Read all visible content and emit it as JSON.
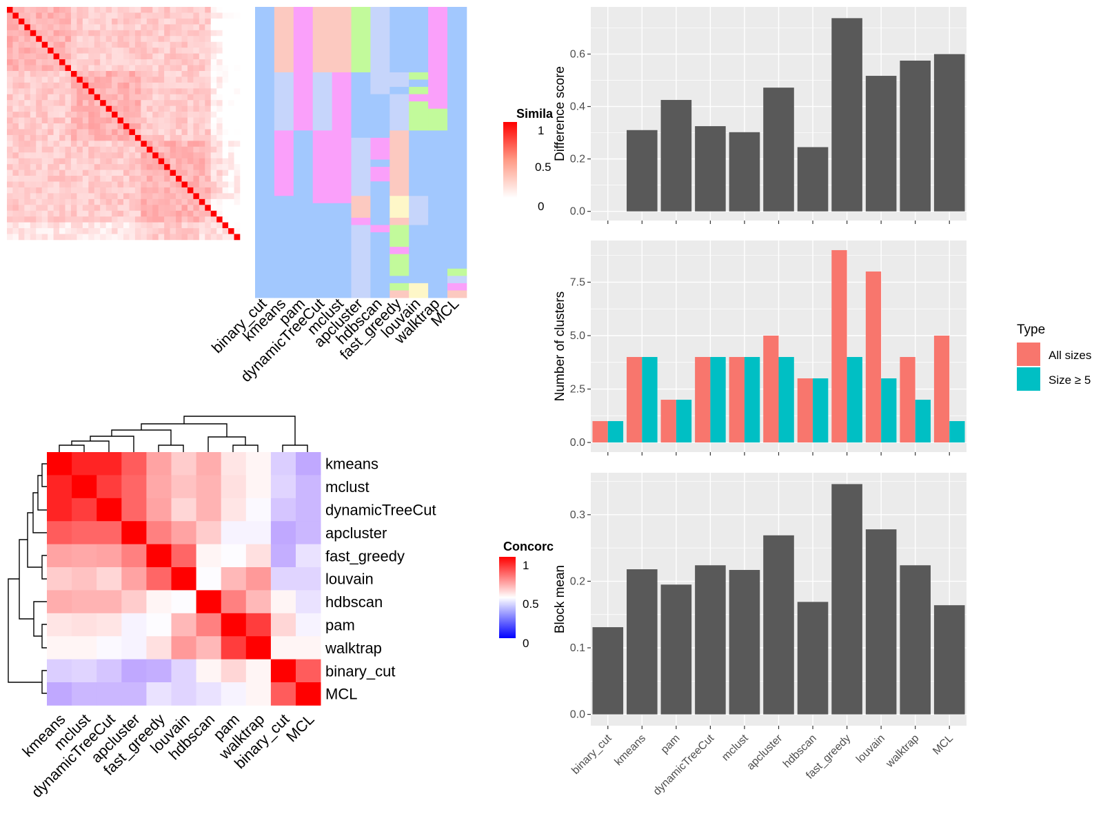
{
  "methods": [
    "binary_cut",
    "kmeans",
    "pam",
    "dynamicTreeCut",
    "mclust",
    "apcluster",
    "hdbscan",
    "fast_greedy",
    "louvain",
    "walktrap",
    "MCL"
  ],
  "colors": {
    "bar": "#595959",
    "panel_bg": "#EBEBEB",
    "grid": "#FFFFFF",
    "all_sizes": "#F8766D",
    "size5": "#00BFC4",
    "heat_high": "#FF0000",
    "heat_mid": "#FFFFFF",
    "heat_low": "#0000FF",
    "class_blue": "#A2C8FE",
    "class_pink": "#FAA0FA",
    "class_salmon": "#FCC9C0",
    "class_green": "#C2FA9B",
    "class_lightblue": "#C6D5FB",
    "class_yellow": "#FEF7C8"
  },
  "similarity_legend": {
    "title": "Simila",
    "ticks": [
      "1",
      "0.5",
      "0"
    ]
  },
  "concordance_legend": {
    "title": "Concorc",
    "ticks": [
      "1",
      "0.5",
      "0"
    ]
  },
  "concordance": {
    "order": [
      "kmeans",
      "mclust",
      "dynamicTreeCut",
      "apcluster",
      "fast_greedy",
      "louvain",
      "hdbscan",
      "pam",
      "walktrap",
      "binary_cut",
      "MCL"
    ],
    "matrix": [
      [
        1.0,
        0.93,
        0.93,
        0.82,
        0.68,
        0.6,
        0.66,
        0.55,
        0.52,
        0.33,
        0.2
      ],
      [
        0.93,
        1.0,
        0.88,
        0.8,
        0.67,
        0.62,
        0.65,
        0.56,
        0.52,
        0.35,
        0.25
      ],
      [
        0.93,
        0.88,
        1.0,
        0.8,
        0.68,
        0.58,
        0.65,
        0.55,
        0.48,
        0.3,
        0.25
      ],
      [
        0.82,
        0.8,
        0.8,
        1.0,
        0.75,
        0.68,
        0.6,
        0.46,
        0.46,
        0.2,
        0.25
      ],
      [
        0.68,
        0.67,
        0.68,
        0.75,
        1.0,
        0.8,
        0.52,
        0.49,
        0.56,
        0.22,
        0.4
      ],
      [
        0.6,
        0.62,
        0.58,
        0.68,
        0.8,
        1.0,
        0.49,
        0.64,
        0.7,
        0.35,
        0.35
      ],
      [
        0.66,
        0.65,
        0.65,
        0.6,
        0.52,
        0.49,
        1.0,
        0.75,
        0.64,
        0.52,
        0.4
      ],
      [
        0.55,
        0.56,
        0.55,
        0.46,
        0.49,
        0.64,
        0.75,
        1.0,
        0.88,
        0.58,
        0.46
      ],
      [
        0.52,
        0.52,
        0.48,
        0.46,
        0.56,
        0.7,
        0.64,
        0.88,
        1.0,
        0.52,
        0.52
      ],
      [
        0.33,
        0.35,
        0.3,
        0.2,
        0.22,
        0.35,
        0.52,
        0.58,
        0.52,
        1.0,
        0.82
      ],
      [
        0.2,
        0.25,
        0.25,
        0.25,
        0.4,
        0.35,
        0.4,
        0.46,
        0.52,
        0.82,
        1.0
      ]
    ]
  },
  "chart_data": [
    {
      "type": "heatmap",
      "title": "",
      "legend_title": "Simila",
      "legend_ticks": [
        1,
        0.5,
        0
      ],
      "size": 40
    },
    {
      "type": "heatmap",
      "title": "",
      "columns": [
        "binary_cut",
        "kmeans",
        "pam",
        "dynamicTreeCut",
        "mclust",
        "apcluster",
        "hdbscan",
        "fast_greedy",
        "louvain",
        "walktrap",
        "MCL"
      ]
    },
    {
      "type": "heatmap",
      "title": "",
      "legend_title": "Concorc",
      "legend_ticks": [
        1,
        0.5,
        0
      ],
      "rows": [
        "kmeans",
        "mclust",
        "dynamicTreeCut",
        "apcluster",
        "fast_greedy",
        "louvain",
        "hdbscan",
        "pam",
        "walktrap",
        "binary_cut",
        "MCL"
      ],
      "columns": [
        "kmeans",
        "mclust",
        "dynamicTreeCut",
        "apcluster",
        "fast_greedy",
        "louvain",
        "hdbscan",
        "pam",
        "walktrap",
        "binary_cut",
        "MCL"
      ]
    },
    {
      "type": "bar",
      "title": "",
      "categories": [
        "binary_cut",
        "kmeans",
        "pam",
        "dynamicTreeCut",
        "mclust",
        "apcluster",
        "hdbscan",
        "fast_greedy",
        "louvain",
        "walktrap",
        "MCL"
      ],
      "values": [
        0,
        0.31,
        0.425,
        0.325,
        0.302,
        0.472,
        0.245,
        0.737,
        0.517,
        0.575,
        0.6
      ],
      "ylabel": "Difference score",
      "ylim": [
        -0.035,
        0.78
      ],
      "yticks": [
        0.0,
        0.2,
        0.4,
        0.6
      ],
      "ytick_labels": [
        "0.0",
        "0.2",
        "0.4",
        "0.6"
      ],
      "grid": true
    },
    {
      "type": "bar",
      "title": "",
      "categories": [
        "binary_cut",
        "kmeans",
        "pam",
        "dynamicTreeCut",
        "mclust",
        "apcluster",
        "hdbscan",
        "fast_greedy",
        "louvain",
        "walktrap",
        "MCL"
      ],
      "series": [
        {
          "name": "All sizes",
          "values": [
            1,
            4,
            2,
            4,
            4,
            5,
            3,
            9,
            8,
            4,
            5
          ]
        },
        {
          "name": "Size ≥ 5",
          "values": [
            1,
            4,
            2,
            4,
            4,
            4,
            3,
            4,
            3,
            2,
            1
          ]
        }
      ],
      "ylabel": "Number of clusters",
      "ylim": [
        -0.45,
        9.45
      ],
      "yticks": [
        0.0,
        2.5,
        5.0,
        7.5
      ],
      "ytick_labels": [
        "0.0",
        "2.5",
        "5.0",
        "7.5"
      ],
      "legend_title": "Type",
      "legend_position": "right",
      "grid": true
    },
    {
      "type": "bar",
      "title": "",
      "categories": [
        "binary_cut",
        "kmeans",
        "pam",
        "dynamicTreeCut",
        "mclust",
        "apcluster",
        "hdbscan",
        "fast_greedy",
        "louvain",
        "walktrap",
        "MCL"
      ],
      "values": [
        0.131,
        0.218,
        0.195,
        0.224,
        0.217,
        0.269,
        0.169,
        0.346,
        0.278,
        0.224,
        0.164
      ],
      "ylabel": "Block mean",
      "ylim": [
        -0.017,
        0.363
      ],
      "yticks": [
        0.0,
        0.1,
        0.2,
        0.3
      ],
      "ytick_labels": [
        "0.0",
        "0.1",
        "0.2",
        "0.3"
      ],
      "grid": true
    }
  ]
}
